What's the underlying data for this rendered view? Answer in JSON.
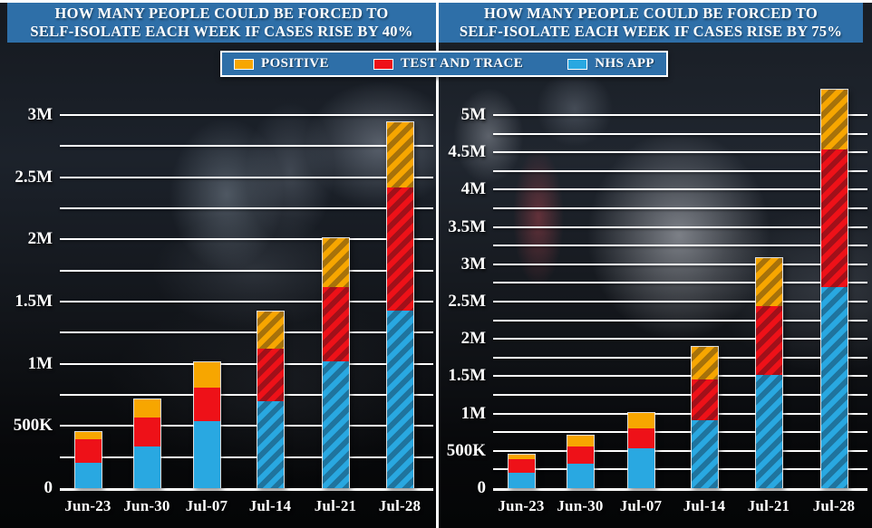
{
  "header": {
    "left_title_line1": "HOW MANY PEOPLE COULD BE FORCED TO",
    "left_title_line2": "SELF-ISOLATE EACH WEEK IF CASES RISE BY 40%",
    "right_title_line1": "HOW MANY PEOPLE COULD BE FORCED TO",
    "right_title_line2": "SELF-ISOLATE EACH WEEK IF CASES RISE BY 75%"
  },
  "colors": {
    "panel_blue": "#2E6FA8",
    "positive_orange": "#F7A600",
    "test_and_trace_red": "#EE1118",
    "nhs_app_blue": "#29A8E1",
    "gridline": "#FFFFFF"
  },
  "legend": {
    "items": [
      {
        "id": "positive",
        "label": "POSITIVE",
        "color": "#F7A600"
      },
      {
        "id": "test-and-trace",
        "label": "TEST AND TRACE",
        "color": "#EE1118"
      },
      {
        "id": "nhs-app",
        "label": "NHS APP",
        "color": "#29A8E1"
      }
    ]
  },
  "chart_data": [
    {
      "type": "bar",
      "subtype": "stacked",
      "title": "HOW MANY PEOPLE COULD BE FORCED TO SELF-ISOLATE EACH WEEK IF CASES RISE BY 40%",
      "categories": [
        "Jun-23",
        "Jun-30",
        "Jul-07",
        "Jul-14",
        "Jul-21",
        "Jul-28"
      ],
      "series": [
        {
          "name": "NHS APP",
          "color": "#29A8E1",
          "values": [
            210000,
            340000,
            540000,
            700000,
            1020000,
            1430000
          ]
        },
        {
          "name": "TEST AND TRACE",
          "color": "#EE1118",
          "values": [
            190000,
            230000,
            270000,
            430000,
            600000,
            990000
          ]
        },
        {
          "name": "POSITIVE",
          "color": "#F7A600",
          "values": [
            60000,
            150000,
            210000,
            300000,
            400000,
            530000
          ]
        }
      ],
      "totals": [
        460000,
        720000,
        1020000,
        1430000,
        2020000,
        2950000
      ],
      "hatched_categories": [
        "Jul-14",
        "Jul-21",
        "Jul-28"
      ],
      "yaxis": {
        "min": 0,
        "grid_max": 3000000,
        "minor_step": 250000,
        "labels": [
          {
            "value": 0,
            "text": "0"
          },
          {
            "value": 500000,
            "text": "500K"
          },
          {
            "value": 1000000,
            "text": "1M"
          },
          {
            "value": 1500000,
            "text": "1.5M"
          },
          {
            "value": 2000000,
            "text": "2M"
          },
          {
            "value": 2500000,
            "text": "2.5M"
          },
          {
            "value": 3000000,
            "text": "3M"
          }
        ]
      },
      "grid": true,
      "legend_position": "top"
    },
    {
      "type": "bar",
      "subtype": "stacked",
      "title": "HOW MANY PEOPLE COULD BE FORCED TO SELF-ISOLATE EACH WEEK IF CASES RISE BY 75%",
      "categories": [
        "Jun-23",
        "Jun-30",
        "Jul-07",
        "Jul-14",
        "Jul-21",
        "Jul-28"
      ],
      "series": [
        {
          "name": "NHS APP",
          "color": "#29A8E1",
          "values": [
            210000,
            340000,
            540000,
            910000,
            1520000,
            2700000
          ]
        },
        {
          "name": "TEST AND TRACE",
          "color": "#EE1118",
          "values": [
            190000,
            230000,
            270000,
            550000,
            930000,
            1850000
          ]
        },
        {
          "name": "POSITIVE",
          "color": "#F7A600",
          "values": [
            60000,
            150000,
            210000,
            450000,
            650000,
            800000
          ]
        }
      ],
      "totals": [
        460000,
        720000,
        1020000,
        1910000,
        3100000,
        5350000
      ],
      "hatched_categories": [
        "Jul-14",
        "Jul-21",
        "Jul-28"
      ],
      "yaxis": {
        "min": 0,
        "grid_max": 5000000,
        "minor_step": 250000,
        "labels": [
          {
            "value": 0,
            "text": "0"
          },
          {
            "value": 500000,
            "text": "500K"
          },
          {
            "value": 1000000,
            "text": "1M"
          },
          {
            "value": 1500000,
            "text": "1.5M"
          },
          {
            "value": 2000000,
            "text": "2M"
          },
          {
            "value": 2500000,
            "text": "2.5M"
          },
          {
            "value": 3000000,
            "text": "3M"
          },
          {
            "value": 3500000,
            "text": "3.5M"
          },
          {
            "value": 4000000,
            "text": "4M"
          },
          {
            "value": 4500000,
            "text": "4.5M"
          },
          {
            "value": 5000000,
            "text": "5M"
          }
        ]
      },
      "grid": true,
      "legend_position": "top"
    }
  ]
}
